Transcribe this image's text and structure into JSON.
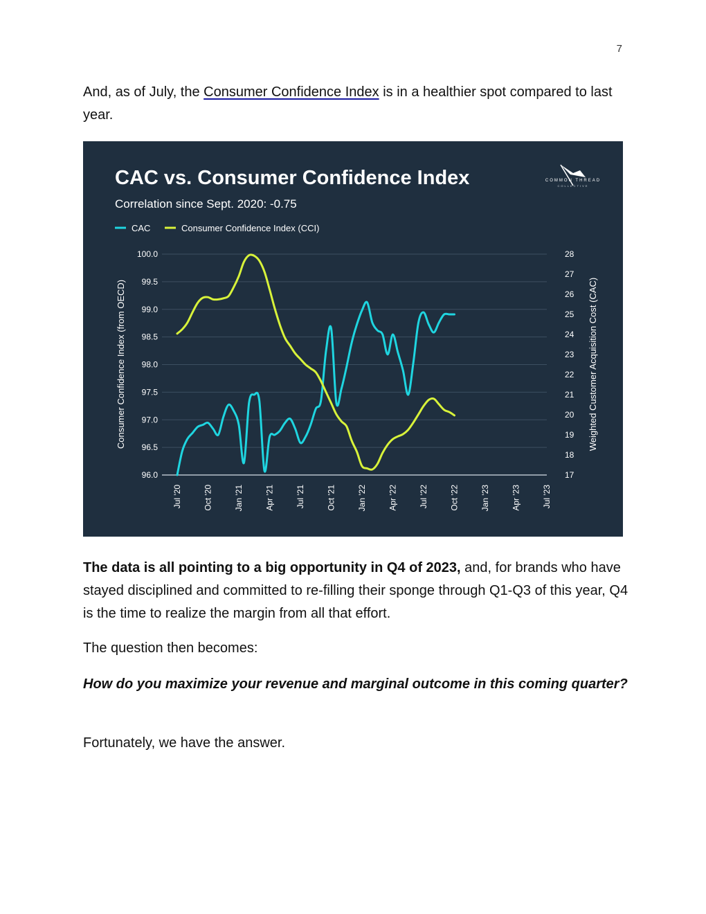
{
  "page_number": "7",
  "intro": {
    "before_link": "And, as of July, the ",
    "link_text": "Consumer Confidence Index",
    "after_link": " is in a healthier spot compared to last year."
  },
  "chart_data": {
    "type": "line",
    "title": "CAC vs. Consumer Confidence Index",
    "subtitle": "Correlation since Sept. 2020: -0.75",
    "logo_text": [
      "COMMON THREAD",
      "COLLECTIVE"
    ],
    "ylabel": "Consumer Confidence Index (from OECD)",
    "y2label": "Weighted Customer Acquisition Cost (CAC)",
    "ylim": [
      96.0,
      100.0
    ],
    "y2lim": [
      17,
      28
    ],
    "yticks": [
      "96.0",
      "96.5",
      "97.0",
      "97.5",
      "98.0",
      "98.5",
      "99.0",
      "99.5",
      "100.0"
    ],
    "y2ticks": [
      "17",
      "18",
      "19",
      "20",
      "21",
      "22",
      "23",
      "24",
      "25",
      "26",
      "27",
      "28"
    ],
    "xlim": [
      0,
      36
    ],
    "xticks": [
      {
        "label": "Jul '20",
        "x": 0
      },
      {
        "label": "Oct '20",
        "x": 3
      },
      {
        "label": "Jan '21",
        "x": 6
      },
      {
        "label": "Apr '21",
        "x": 9
      },
      {
        "label": "Jul '21",
        "x": 12
      },
      {
        "label": "Oct '21",
        "x": 15
      },
      {
        "label": "Jan '22",
        "x": 18
      },
      {
        "label": "Apr '22",
        "x": 21
      },
      {
        "label": "Jul '22",
        "x": 24
      },
      {
        "label": "Oct '22",
        "x": 27
      },
      {
        "label": "Jan '23",
        "x": 30
      },
      {
        "label": "Apr '23",
        "x": 33
      },
      {
        "label": "Jul '23",
        "x": 36
      }
    ],
    "legend": "top-left",
    "series": [
      {
        "name": "CAC",
        "axis": "right",
        "color": "#1fd5e0",
        "points": [
          [
            0,
            17.0
          ],
          [
            0.5,
            18.2
          ],
          [
            1,
            18.8
          ],
          [
            1.5,
            19.1
          ],
          [
            2,
            19.4
          ],
          [
            2.5,
            19.5
          ],
          [
            3,
            19.6
          ],
          [
            3.5,
            19.3
          ],
          [
            4,
            19.0
          ],
          [
            4.5,
            19.9
          ],
          [
            5,
            20.5
          ],
          [
            5.5,
            20.2
          ],
          [
            6,
            19.5
          ],
          [
            6.5,
            17.6
          ],
          [
            7,
            20.6
          ],
          [
            7.5,
            21.0
          ],
          [
            8,
            20.7
          ],
          [
            8.5,
            17.2
          ],
          [
            9,
            18.9
          ],
          [
            9.5,
            19.0
          ],
          [
            10,
            19.2
          ],
          [
            10.5,
            19.6
          ],
          [
            11,
            19.8
          ],
          [
            11.5,
            19.3
          ],
          [
            12,
            18.6
          ],
          [
            12.5,
            18.9
          ],
          [
            13,
            19.5
          ],
          [
            13.5,
            20.3
          ],
          [
            14,
            20.7
          ],
          [
            14.5,
            23.2
          ],
          [
            15,
            24.3
          ],
          [
            15.5,
            20.6
          ],
          [
            16,
            21.3
          ],
          [
            16.5,
            22.4
          ],
          [
            17,
            23.6
          ],
          [
            17.5,
            24.5
          ],
          [
            18,
            25.2
          ],
          [
            18.5,
            25.6
          ],
          [
            19,
            24.6
          ],
          [
            19.5,
            24.2
          ],
          [
            20,
            24.0
          ],
          [
            20.5,
            23.0
          ],
          [
            21,
            24.0
          ],
          [
            21.5,
            23.1
          ],
          [
            22,
            22.2
          ],
          [
            22.5,
            21.0
          ],
          [
            23,
            22.6
          ],
          [
            23.5,
            24.6
          ],
          [
            24,
            25.1
          ],
          [
            24.5,
            24.5
          ],
          [
            25,
            24.1
          ],
          [
            25.5,
            24.6
          ],
          [
            26,
            25.0
          ],
          [
            26.5,
            25.0
          ],
          [
            27,
            25.0
          ]
        ]
      },
      {
        "name": "Consumer Confidence Index (CCI)",
        "axis": "left",
        "color": "#d8f23a",
        "points": [
          [
            0,
            98.56
          ],
          [
            0.5,
            98.64
          ],
          [
            1,
            98.76
          ],
          [
            1.5,
            98.95
          ],
          [
            2,
            99.12
          ],
          [
            2.5,
            99.21
          ],
          [
            3,
            99.22
          ],
          [
            3.5,
            99.18
          ],
          [
            4,
            99.18
          ],
          [
            4.5,
            99.2
          ],
          [
            5,
            99.24
          ],
          [
            5.5,
            99.4
          ],
          [
            6,
            99.6
          ],
          [
            6.5,
            99.86
          ],
          [
            7,
            99.98
          ],
          [
            7.5,
            99.97
          ],
          [
            8,
            99.88
          ],
          [
            8.5,
            99.68
          ],
          [
            9,
            99.36
          ],
          [
            9.5,
            99.02
          ],
          [
            10,
            98.72
          ],
          [
            10.5,
            98.48
          ],
          [
            11,
            98.34
          ],
          [
            11.5,
            98.2
          ],
          [
            12,
            98.1
          ],
          [
            12.5,
            98.0
          ],
          [
            13,
            97.93
          ],
          [
            13.5,
            97.86
          ],
          [
            14,
            97.7
          ],
          [
            14.5,
            97.5
          ],
          [
            15,
            97.3
          ],
          [
            15.5,
            97.1
          ],
          [
            16,
            96.97
          ],
          [
            16.5,
            96.88
          ],
          [
            17,
            96.62
          ],
          [
            17.5,
            96.42
          ],
          [
            18,
            96.16
          ],
          [
            18.5,
            96.12
          ],
          [
            19,
            96.1
          ],
          [
            19.5,
            96.2
          ],
          [
            20,
            96.4
          ],
          [
            20.5,
            96.55
          ],
          [
            21,
            96.65
          ],
          [
            21.5,
            96.7
          ],
          [
            22,
            96.74
          ],
          [
            22.5,
            96.82
          ],
          [
            23,
            96.95
          ],
          [
            23.5,
            97.1
          ],
          [
            24,
            97.25
          ],
          [
            24.5,
            97.36
          ],
          [
            25,
            97.38
          ],
          [
            25.5,
            97.28
          ],
          [
            26,
            97.18
          ],
          [
            26.5,
            97.14
          ],
          [
            27,
            97.08
          ]
        ]
      }
    ]
  },
  "p2": {
    "bold": "The data is all pointing to a big opportunity in Q4 of 2023,",
    "rest": " and, for brands who have stayed disciplined and committed to re-filling their sponge through Q1-Q3 of this year, Q4 is the time to realize the margin from all that effort."
  },
  "p3": "The question then becomes:",
  "p4": "How do you maximize your revenue and marginal outcome in this coming quarter?",
  "p5": "Fortunately, we have the answer."
}
